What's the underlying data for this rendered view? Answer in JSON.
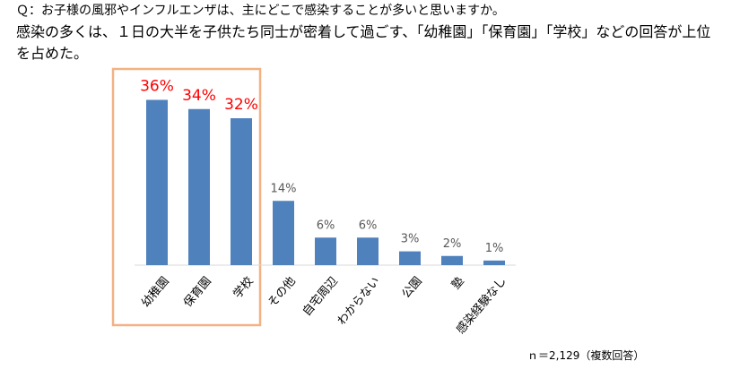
{
  "question": "Ｑ：お子様の風邪やインフルエンザは、主にどこで感染することが多いと思いますか。",
  "lead": "感染の多くは、１日の大半を子供たち同士が密着して過ごす、「幼稚園」「保育園」「学校」などの回答が上位を占めた。",
  "footnote": "ｎ＝2,129（複数回答）",
  "colors": {
    "bar": "#4f81bd",
    "highlight_label": "#ff0000",
    "label": "#595959",
    "box": "#f4b183",
    "axis": "#d9d9d9"
  },
  "chart_data": {
    "type": "bar",
    "categories": [
      "幼稚園",
      "保育園",
      "学校",
      "その他",
      "自宅周辺",
      "わからない",
      "公園",
      "塾",
      "感染経験なし"
    ],
    "values": [
      36,
      34,
      32,
      14,
      6,
      6,
      3,
      2,
      1
    ],
    "data_labels": [
      "36%",
      "34%",
      "32%",
      "14%",
      "6%",
      "6%",
      "3%",
      "2%",
      "1%"
    ],
    "highlighted_categories": [
      "幼稚園",
      "保育園",
      "学校"
    ],
    "ylim": [
      0,
      40
    ],
    "grid": false,
    "legend": "none"
  }
}
